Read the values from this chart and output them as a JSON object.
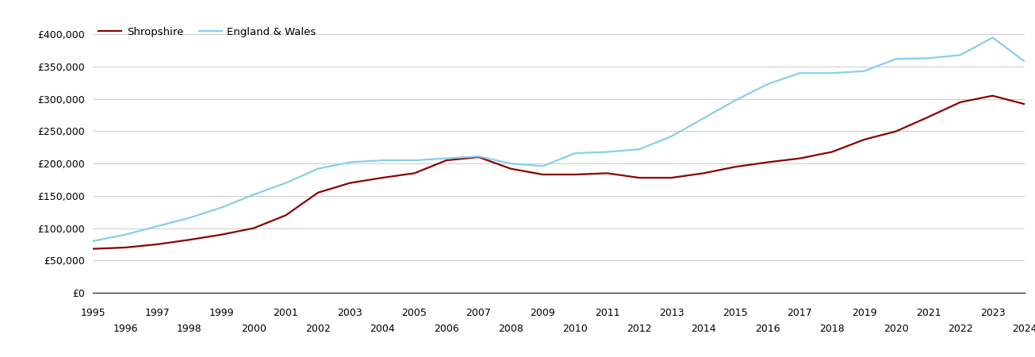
{
  "shropshire": {
    "label": "Shropshire",
    "color": "#8B0000",
    "years": [
      1995,
      1996,
      1997,
      1998,
      1999,
      2000,
      2001,
      2002,
      2003,
      2004,
      2005,
      2006,
      2007,
      2008,
      2009,
      2010,
      2011,
      2012,
      2013,
      2014,
      2015,
      2016,
      2017,
      2018,
      2019,
      2020,
      2021,
      2022,
      2023,
      2024
    ],
    "values": [
      68000,
      70000,
      75000,
      82000,
      90000,
      100000,
      120000,
      155000,
      170000,
      178000,
      185000,
      205000,
      210000,
      192000,
      183000,
      183000,
      185000,
      178000,
      178000,
      185000,
      195000,
      202000,
      208000,
      218000,
      237000,
      250000,
      272000,
      295000,
      305000,
      292000
    ]
  },
  "england_wales": {
    "label": "England & Wales",
    "color": "#87CEEB",
    "years": [
      1995,
      1996,
      1997,
      1998,
      1999,
      2000,
      2001,
      2002,
      2003,
      2004,
      2005,
      2006,
      2007,
      2008,
      2009,
      2010,
      2011,
      2012,
      2013,
      2014,
      2015,
      2016,
      2017,
      2018,
      2019,
      2020,
      2021,
      2022,
      2023,
      2024
    ],
    "values": [
      80000,
      90000,
      103000,
      116000,
      132000,
      152000,
      170000,
      192000,
      202000,
      205000,
      205000,
      208000,
      211000,
      200000,
      196000,
      216000,
      218000,
      222000,
      242000,
      270000,
      298000,
      323000,
      340000,
      340000,
      343000,
      362000,
      363000,
      368000,
      395000,
      358000
    ]
  },
  "ylim": [
    0,
    420000
  ],
  "xlim": [
    1995,
    2024
  ],
  "yticks": [
    0,
    50000,
    100000,
    150000,
    200000,
    250000,
    300000,
    350000,
    400000
  ],
  "ytick_labels": [
    "£0",
    "£50,000",
    "£100,000",
    "£150,000",
    "£200,000",
    "£250,000",
    "£300,000",
    "£350,000",
    "£400,000"
  ],
  "xticks_odd": [
    1995,
    1997,
    1999,
    2001,
    2003,
    2005,
    2007,
    2009,
    2011,
    2013,
    2015,
    2017,
    2019,
    2021,
    2023
  ],
  "xticks_even": [
    1996,
    1998,
    2000,
    2002,
    2004,
    2006,
    2008,
    2010,
    2012,
    2014,
    2016,
    2018,
    2020,
    2022,
    2024
  ],
  "line_width": 1.6,
  "background_color": "#ffffff",
  "grid_color": "#cccccc",
  "legend_fontsize": 9.5,
  "tick_fontsize": 9
}
